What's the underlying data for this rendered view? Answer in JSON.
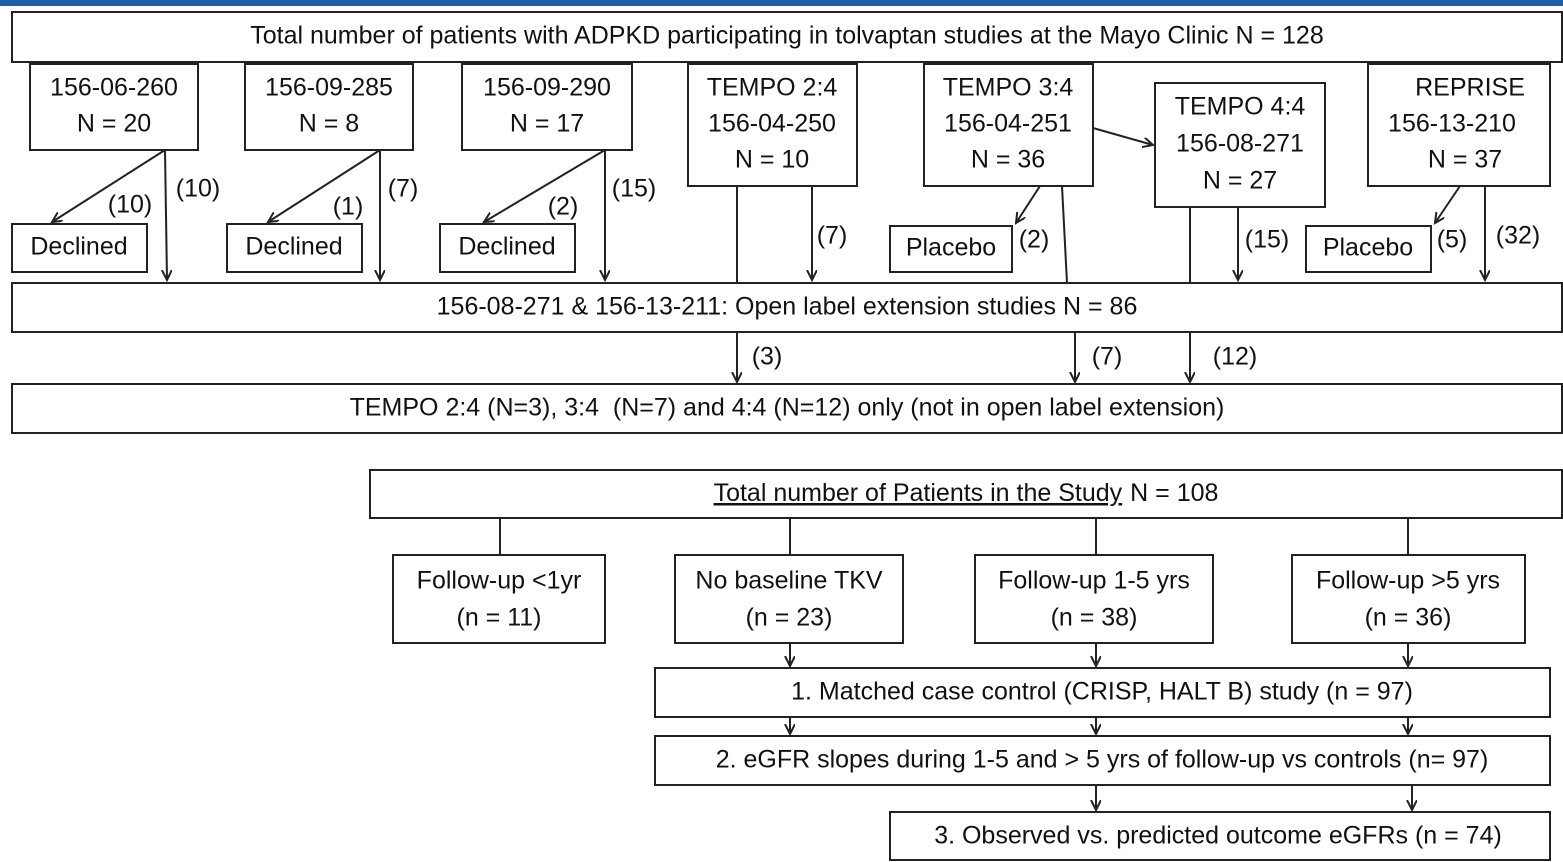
{
  "title": "Total number of patients with ADPKD participating in tolvaptan studies at the Mayo Clinic N = 128",
  "studies": [
    {
      "lines": [
        "156-06-260",
        "N = 20"
      ]
    },
    {
      "lines": [
        "156-09-285",
        "N = 8"
      ]
    },
    {
      "lines": [
        "156-09-290",
        "N = 17"
      ]
    },
    {
      "lines": [
        "TEMPO 2:4",
        "156-04-250",
        "N = 10"
      ]
    },
    {
      "lines": [
        "TEMPO 3:4",
        "156-04-251",
        "N = 36"
      ]
    },
    {
      "lines": [
        "TEMPO 4:4",
        "156-08-271",
        "N = 27"
      ]
    },
    {
      "lines": [
        "REPRISE",
        "156-13-210",
        "N = 37"
      ]
    }
  ],
  "excluded": [
    "Declined",
    "Declined",
    "Declined",
    "Placebo",
    "Placebo"
  ],
  "counts": [
    "(10)",
    "(10)",
    "(1)",
    "(7)",
    "(2)",
    "(15)",
    "(7)",
    "(2)",
    "(15)",
    "(5)",
    "(32)"
  ],
  "extension": "156-08-271 & 156-13-211: Open label extension studies N = 86",
  "extension_counts": [
    "(3)",
    "(7)",
    "(12)"
  ],
  "not_in_extension": "TEMPO 2:4 (N=3), 3:4  (N=7) and 4:4 (N=12) only (not in open label extension)",
  "study_total": {
    "underlined": "Total number of Patients in the Study",
    "rest": "N = 108"
  },
  "groups": [
    {
      "lines": [
        "Follow-up <1yr",
        "(n = 11)"
      ]
    },
    {
      "lines": [
        "No baseline TKV",
        "(n = 23)"
      ]
    },
    {
      "lines": [
        "Follow-up 1-5 yrs",
        "(n = 38)"
      ]
    },
    {
      "lines": [
        "Follow-up >5 yrs",
        "(n = 36)"
      ]
    }
  ],
  "analyses": [
    "1. Matched case control (CRISP, HALT B) study (n = 97)",
    "2. eGFR slopes during 1-5 and > 5 yrs of follow-up vs controls (n= 97)",
    "3. Observed vs. predicted outcome eGFRs (n = 74)"
  ]
}
